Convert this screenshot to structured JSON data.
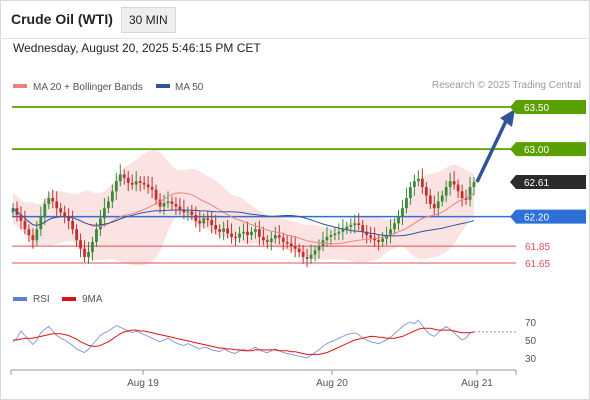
{
  "header": {
    "title": "Crude Oil (WTI)",
    "timeframe": "30 MIN",
    "timestamp": "Wednesday, August 20, 2025 5:46:15 PM CET",
    "credit": "Research © 2025 Trading Central"
  },
  "legend": [
    {
      "label": "MA 20 + Bollinger Bands",
      "color": "#f08080"
    },
    {
      "label": "MA 50",
      "color": "#2f5597"
    }
  ],
  "rsi_legend": [
    {
      "label": "RSI",
      "color": "#5b7fd6"
    },
    {
      "label": "9MA",
      "color": "#e01010"
    }
  ],
  "chart_data": [
    {
      "type": "candlestick",
      "x_ticks": [
        "Aug 19",
        "Aug 20",
        "Aug 21"
      ],
      "price_levels": [
        {
          "value": 63.5,
          "label": "63.50",
          "kind": "resistance",
          "color": "#5aa000"
        },
        {
          "value": 63.0,
          "label": "63.00",
          "kind": "resistance",
          "color": "#5aa000"
        },
        {
          "value": 62.61,
          "label": "62.61",
          "kind": "last",
          "color": "#2b2b2b"
        },
        {
          "value": 62.2,
          "label": "62.20",
          "kind": "pivot",
          "color": "#2e6fd8"
        },
        {
          "value": 61.85,
          "label": "61.85",
          "kind": "support",
          "color": "#e05252"
        },
        {
          "value": 61.65,
          "label": "61.65",
          "kind": "support",
          "color": "#e05252"
        }
      ],
      "closes": [
        62.3,
        62.22,
        62.15,
        62.05,
        61.98,
        61.92,
        62.05,
        62.2,
        62.35,
        62.42,
        62.38,
        62.3,
        62.25,
        62.2,
        62.15,
        62.05,
        61.92,
        61.82,
        61.72,
        61.78,
        61.9,
        62.05,
        62.18,
        62.3,
        62.38,
        62.5,
        62.62,
        62.7,
        62.66,
        62.6,
        62.58,
        62.62,
        62.6,
        62.58,
        62.55,
        62.52,
        62.4,
        62.32,
        62.36,
        62.38,
        62.35,
        62.32,
        62.28,
        62.25,
        62.26,
        62.22,
        62.15,
        62.12,
        62.18,
        62.16,
        62.1,
        62.05,
        62.02,
        62.06,
        62.0,
        61.96,
        61.95,
        62.0,
        62.02,
        61.98,
        62.02,
        62.05,
        61.96,
        61.92,
        61.9,
        61.94,
        61.98,
        61.95,
        61.9,
        61.88,
        61.85,
        61.82,
        61.78,
        61.72,
        61.7,
        61.75,
        61.8,
        61.85,
        61.92,
        61.96,
        61.98,
        62.0,
        62.02,
        62.05,
        62.08,
        62.1,
        62.12,
        62.1,
        62.02,
        61.98,
        61.95,
        61.92,
        61.9,
        61.94,
        61.98,
        62.05,
        62.12,
        62.2,
        62.3,
        62.42,
        62.55,
        62.62,
        62.65,
        62.55,
        62.45,
        62.35,
        62.3,
        62.38,
        62.45,
        62.55,
        62.62,
        62.58,
        62.5,
        62.42,
        62.4,
        62.55,
        62.61
      ],
      "rsi": {
        "ticks": [
          70,
          50,
          30
        ],
        "rsi": [
          48,
          52,
          60,
          55,
          50,
          45,
          50,
          58,
          62,
          65,
          60,
          55,
          52,
          50,
          47,
          44,
          40,
          38,
          36,
          40,
          45,
          50,
          55,
          58,
          60,
          63,
          66,
          64,
          62,
          60,
          58,
          60,
          58,
          56,
          54,
          52,
          50,
          48,
          50,
          52,
          49,
          47,
          45,
          44,
          46,
          44,
          42,
          40,
          42,
          41,
          39,
          38,
          37,
          40,
          38,
          36,
          35,
          38,
          40,
          38,
          40,
          42,
          39,
          37,
          36,
          38,
          40,
          38,
          36,
          35,
          34,
          33,
          32,
          31,
          30,
          33,
          36,
          39,
          43,
          46,
          48,
          50,
          52,
          54,
          56,
          57,
          58,
          56,
          52,
          50,
          48,
          47,
          46,
          48,
          50,
          53,
          57,
          61,
          65,
          68,
          70,
          68,
          72,
          66,
          60,
          56,
          54,
          58,
          62,
          65,
          62,
          58,
          54,
          50,
          52,
          58,
          59
        ],
        "ma9": [
          50,
          50,
          51,
          52,
          52,
          52,
          53,
          54,
          55,
          56,
          57,
          57,
          57,
          56,
          55,
          53,
          51,
          48,
          46,
          44,
          43,
          43,
          44,
          46,
          48,
          51,
          54,
          57,
          59,
          60,
          61,
          61,
          60,
          60,
          59,
          58,
          57,
          56,
          55,
          54,
          53,
          52,
          51,
          50,
          49,
          48,
          47,
          46,
          45,
          44,
          43,
          42,
          41,
          41,
          40,
          40,
          39,
          39,
          38,
          38,
          38,
          39,
          39,
          39,
          39,
          39,
          39,
          38,
          38,
          38,
          37,
          37,
          36,
          35,
          34,
          34,
          34,
          34,
          35,
          36,
          38,
          40,
          42,
          44,
          46,
          48,
          50,
          51,
          52,
          53,
          54,
          54,
          53,
          53,
          52,
          52,
          52,
          53,
          54,
          56,
          58,
          60,
          62,
          63,
          63,
          63,
          62,
          61,
          61,
          61,
          61,
          60,
          59,
          58,
          58,
          58,
          59
        ]
      }
    }
  ]
}
